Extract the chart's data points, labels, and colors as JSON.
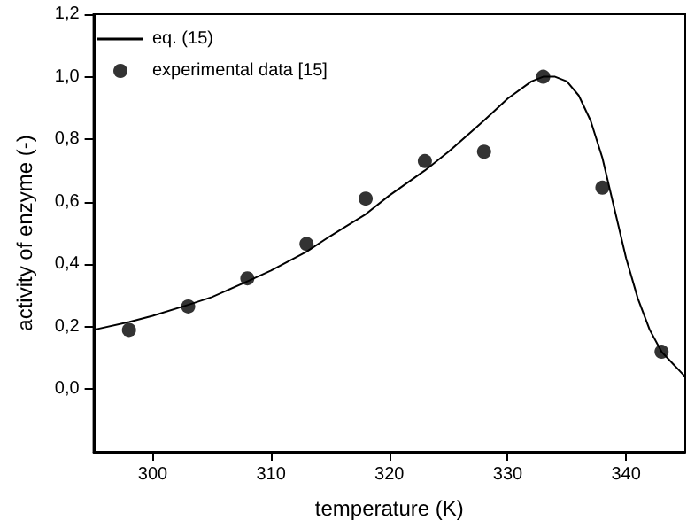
{
  "chart_data": {
    "type": "line",
    "xlabel": "temperature (K)",
    "ylabel": "activity of enzyme (-)",
    "xlim": [
      295,
      345
    ],
    "xticks": [
      300,
      310,
      320,
      330,
      340
    ],
    "ylim": [
      -0.2,
      1.2
    ],
    "yticks": [
      {
        "value": 0,
        "label": "0,0"
      },
      {
        "value": 0.2,
        "label": "0,2"
      },
      {
        "value": 0.4,
        "label": "0,4"
      },
      {
        "value": 0.6,
        "label": "0,6"
      },
      {
        "value": 0.8,
        "label": "0,8"
      },
      {
        "value": 1.0,
        "label": "1,0"
      },
      {
        "value": 1.2,
        "label": "1,2"
      }
    ],
    "grid": false,
    "legend": "top left",
    "series": [
      {
        "name": "eq. (15)",
        "color": "#000000",
        "marker": "none",
        "x": [
          295,
          298,
          300,
          303,
          305,
          308,
          310,
          313,
          315,
          318,
          320,
          323,
          325,
          328,
          330,
          332,
          333,
          334,
          335,
          336,
          337,
          338,
          339,
          340,
          341,
          342,
          343,
          344,
          345
        ],
        "values": [
          0.19,
          0.215,
          0.235,
          0.27,
          0.295,
          0.345,
          0.38,
          0.44,
          0.49,
          0.56,
          0.62,
          0.7,
          0.76,
          0.86,
          0.93,
          0.985,
          1.0,
          1.0,
          0.985,
          0.94,
          0.86,
          0.74,
          0.58,
          0.42,
          0.29,
          0.19,
          0.12,
          0.08,
          0.04
        ]
      },
      {
        "name": "experimental data [15]",
        "type": "scatter",
        "color": "#000000",
        "marker": "circle",
        "x": [
          298,
          303,
          308,
          313,
          318,
          323,
          328,
          333,
          338,
          343
        ],
        "values": [
          0.19,
          0.265,
          0.355,
          0.465,
          0.61,
          0.73,
          0.76,
          1.0,
          0.645,
          0.12
        ]
      }
    ]
  }
}
